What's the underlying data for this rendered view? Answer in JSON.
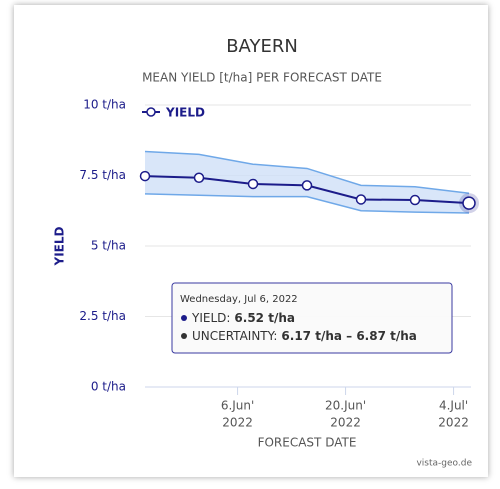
{
  "chart_data": {
    "type": "line",
    "title": "BAYERN",
    "subtitle": "MEAN YIELD [t/ha] PER FORECAST DATE",
    "x_label": "FORECAST DATE",
    "y_label": "YIELD",
    "credits": "vista-geo.de",
    "x": [
      "2022-05-25",
      "2022-06-01",
      "2022-06-08",
      "2022-06-15",
      "2022-06-22",
      "2022-06-29",
      "2022-07-06"
    ],
    "series": [
      {
        "name": "YIELD",
        "color": "#1c1c8a",
        "values": [
          7.48,
          7.42,
          7.2,
          7.15,
          6.65,
          6.63,
          6.52
        ]
      }
    ],
    "range": {
      "color": "#6fa8e8",
      "fill": "#cfe0f7",
      "low": [
        6.85,
        6.8,
        6.75,
        6.75,
        6.25,
        6.2,
        6.17
      ],
      "high": [
        8.35,
        8.25,
        7.9,
        7.75,
        7.15,
        7.1,
        6.87
      ]
    },
    "xlim": [
      "2022-05-25",
      "2022-07-06"
    ],
    "xticks": [
      {
        "value": "2022-06-06",
        "label": [
          "6.Jun'",
          "2022"
        ]
      },
      {
        "value": "2022-06-20",
        "label": [
          "20.Jun'",
          "2022"
        ]
      },
      {
        "value": "2022-07-04",
        "label": [
          "4.Jul'",
          "2022"
        ]
      }
    ],
    "ylim": [
      0,
      10
    ],
    "yticks": [
      {
        "value": 0,
        "label": "0 t/ha"
      },
      {
        "value": 2.5,
        "label": "2.5 t/ha"
      },
      {
        "value": 5,
        "label": "5 t/ha"
      },
      {
        "value": 7.5,
        "label": "7.5 t/ha"
      },
      {
        "value": 10,
        "label": "10 t/ha"
      }
    ],
    "grid": true,
    "legend": "top-left",
    "tooltip": {
      "date": "Wednesday, Jul 6, 2022",
      "items": [
        {
          "label": "YIELD:",
          "value": "6.52 t/ha",
          "color": "#1c1c8a"
        },
        {
          "label": "UNCERTAINTY:",
          "value": "6.17 t/ha – 6.87 t/ha",
          "color": "#333333"
        }
      ]
    }
  }
}
